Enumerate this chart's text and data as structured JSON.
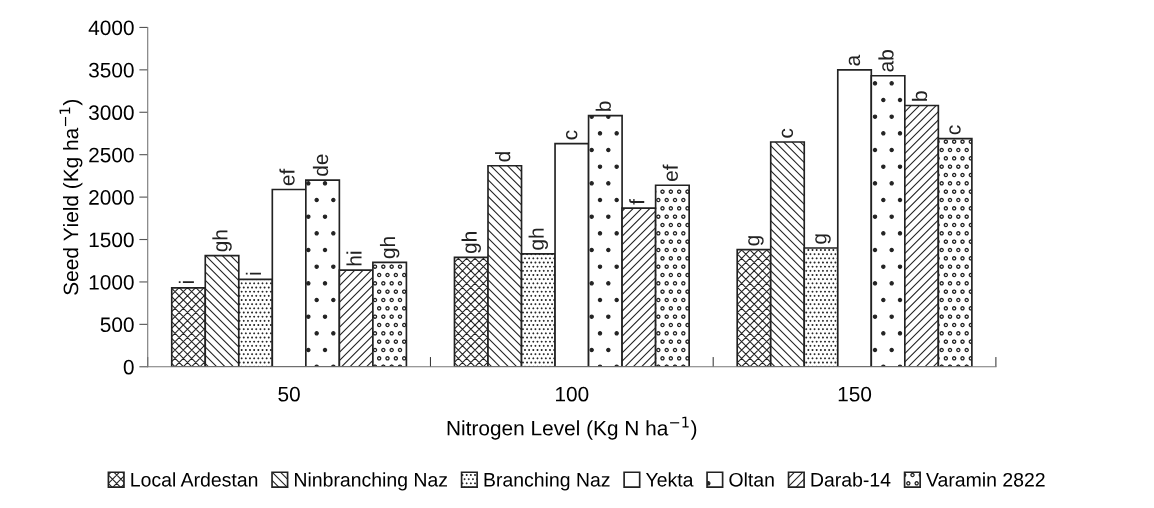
{
  "chart_data": {
    "type": "bar",
    "xlabel": "Nitrogen Level (Kg N ha$^{−1}$)",
    "ylabel": "Seed Yield (Kg ha$^{−1}$)",
    "categories": [
      "50",
      "100",
      "150"
    ],
    "series": [
      {
        "name": "Local Ardestan",
        "color": "#222222",
        "values": [
          930,
          1290,
          1380
        ],
        "value_labels": [
          "i",
          "gh",
          "g"
        ]
      },
      {
        "name": "Ninbranching Naz",
        "color": "#222222",
        "values": [
          1310,
          2370,
          2650
        ],
        "value_labels": [
          "gh",
          "d",
          "c"
        ]
      },
      {
        "name": "Branching Naz",
        "color": "#222222",
        "values": [
          1030,
          1330,
          1400
        ],
        "value_labels": [
          "i",
          "gh",
          "g"
        ]
      },
      {
        "name": "Yekta",
        "color": "#ffffff",
        "values": [
          2090,
          2630,
          3500
        ],
        "value_labels": [
          "ef",
          "c",
          "a"
        ]
      },
      {
        "name": "Oltan",
        "color": "#222222",
        "values": [
          2200,
          2960,
          3430
        ],
        "value_labels": [
          "de",
          "b",
          "ab"
        ]
      },
      {
        "name": "Darab-14",
        "color": "#222222",
        "values": [
          1140,
          1870,
          3080
        ],
        "value_labels": [
          "hi",
          "f",
          "b"
        ]
      },
      {
        "name": "Varamin 2822",
        "color": "#222222",
        "values": [
          1230,
          2140,
          2690
        ],
        "value_labels": [
          "gh",
          "ef",
          "c"
        ]
      }
    ],
    "ylim": [
      0,
      4000
    ],
    "yticks": [
      0,
      500,
      1000,
      1500,
      2000,
      2500,
      3000,
      3500,
      4000
    ],
    "grid": false,
    "legend": "bottom"
  }
}
